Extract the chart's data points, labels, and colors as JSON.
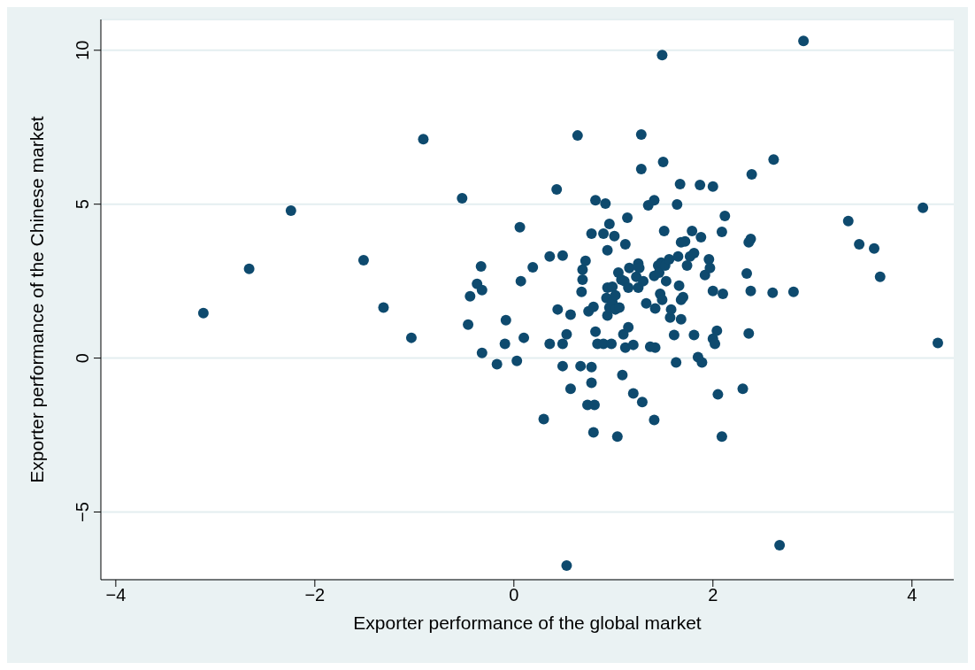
{
  "chart_data": {
    "type": "scatter",
    "xlabel": "Exporter performance of the global market",
    "ylabel": "Exporter performance of the Chinese market",
    "xlim": [
      -4.15,
      4.42
    ],
    "ylim": [
      -7.2,
      11.0
    ],
    "xticks": [
      {
        "value": -4,
        "label": "−4"
      },
      {
        "value": -2,
        "label": "−2"
      },
      0,
      2,
      4
    ],
    "yticks": [
      {
        "value": -5,
        "label": "−5"
      },
      0,
      5,
      10
    ],
    "grid": "y",
    "marker": "circle",
    "color": "#0e4a6e",
    "x": [
      -3.12,
      -2.66,
      -2.24,
      -1.51,
      -1.31,
      -1.03,
      -0.91,
      -0.52,
      -0.44,
      -0.46,
      -0.37,
      -0.33,
      -0.32,
      -0.32,
      -0.17,
      -0.08,
      -0.09,
      0.03,
      0.06,
      0.07,
      0.1,
      0.19,
      0.3,
      0.36,
      0.36,
      0.43,
      0.44,
      0.49,
      0.49,
      0.49,
      0.53,
      0.53,
      0.57,
      0.57,
      0.64,
      0.67,
      0.68,
      0.69,
      0.69,
      0.72,
      0.74,
      0.75,
      0.78,
      0.78,
      0.78,
      0.8,
      0.81,
      0.8,
      0.82,
      0.84,
      0.82,
      0.9,
      0.9,
      0.92,
      0.93,
      0.94,
      0.94,
      0.94,
      0.96,
      0.96,
      0.98,
      0.99,
      0.99,
      1.01,
      1.02,
      1.02,
      1.05,
      1.04,
      1.06,
      1.08,
      1.09,
      1.1,
      1.11,
      1.12,
      1.14,
      1.15,
      1.16,
      1.12,
      1.15,
      1.2,
      1.2,
      1.23,
      1.25,
      1.25,
      1.26,
      1.28,
      1.28,
      1.29,
      1.3,
      1.33,
      1.35,
      1.37,
      1.41,
      1.41,
      1.41,
      1.42,
      1.42,
      1.45,
      1.46,
      1.47,
      1.48,
      1.49,
      1.49,
      1.5,
      1.51,
      1.52,
      1.53,
      1.56,
      1.57,
      1.58,
      1.61,
      1.63,
      1.64,
      1.65,
      1.66,
      1.67,
      1.68,
      1.68,
      1.68,
      1.7,
      1.72,
      1.74,
      1.77,
      1.79,
      1.81,
      1.81,
      1.85,
      1.87,
      1.89,
      1.88,
      1.92,
      1.96,
      1.97,
      2.0,
      2.0,
      2.0,
      2.02,
      2.04,
      2.05,
      2.09,
      2.1,
      2.09,
      2.12,
      2.3,
      2.36,
      2.39,
      2.34,
      2.36,
      2.38,
      2.38,
      2.6,
      2.61,
      2.67,
      2.81,
      2.91,
      3.36,
      3.47,
      3.62,
      3.68,
      4.11,
      4.26
    ],
    "values": [
      1.46,
      2.9,
      4.79,
      3.18,
      1.64,
      0.66,
      7.11,
      5.19,
      2.01,
      1.09,
      2.41,
      2.98,
      2.21,
      0.17,
      -0.2,
      1.23,
      0.46,
      -0.09,
      4.25,
      2.5,
      0.66,
      2.95,
      -1.98,
      3.3,
      0.46,
      5.48,
      1.58,
      0.46,
      -0.26,
      3.33,
      -6.74,
      0.77,
      -1.0,
      1.41,
      7.23,
      -0.26,
      2.15,
      2.87,
      2.55,
      3.16,
      -1.52,
      1.52,
      -0.29,
      4.04,
      -0.8,
      1.66,
      -1.52,
      -2.41,
      0.86,
      0.46,
      5.13,
      0.46,
      4.04,
      5.02,
      1.95,
      3.5,
      2.29,
      1.38,
      1.64,
      4.36,
      0.46,
      2.32,
      1.81,
      3.96,
      2.04,
      1.58,
      2.78,
      -2.55,
      1.64,
      2.55,
      -0.55,
      0.77,
      2.5,
      0.34,
      4.56,
      1.0,
      2.93,
      3.7,
      2.29,
      0.43,
      -1.15,
      2.64,
      3.07,
      2.29,
      2.93,
      7.26,
      6.14,
      -1.43,
      2.5,
      1.78,
      4.96,
      0.37,
      5.13,
      -2.01,
      2.67,
      1.61,
      0.34,
      3.01,
      2.78,
      2.09,
      3.1,
      9.84,
      1.89,
      6.37,
      4.13,
      3.01,
      2.5,
      3.21,
      1.32,
      1.58,
      0.75,
      -0.14,
      4.99,
      3.3,
      2.35,
      5.65,
      1.89,
      1.26,
      3.76,
      1.98,
      3.79,
      3.01,
      3.3,
      4.13,
      0.75,
      3.41,
      0.03,
      5.62,
      -0.14,
      3.93,
      2.7,
      3.21,
      2.93,
      2.18,
      5.57,
      0.63,
      0.46,
      0.89,
      -1.18,
      -2.55,
      2.09,
      4.1,
      4.62,
      -1.0,
      0.8,
      5.97,
      2.75,
      3.76,
      3.87,
      2.18,
      2.12,
      6.45,
      -6.08,
      2.15,
      10.3,
      4.45,
      3.7,
      3.56,
      2.64,
      4.88,
      0.49
    ]
  }
}
